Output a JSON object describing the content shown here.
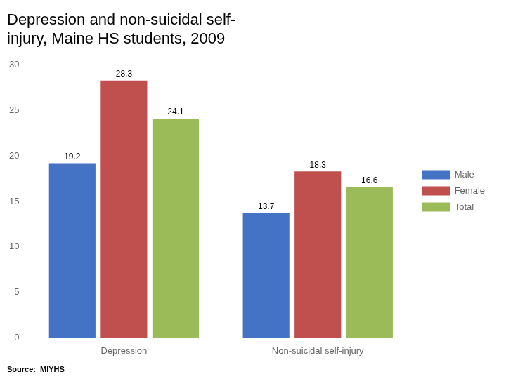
{
  "chart_data": {
    "type": "bar",
    "title": "Depression and non-suicidal self-\ninjury, Maine HS students, 2009",
    "categories": [
      "Depression",
      "Non-suicidal self-injury"
    ],
    "series": [
      {
        "name": "Male",
        "color": "#4472C4",
        "values": [
          19.2,
          13.7
        ]
      },
      {
        "name": "Female",
        "color": "#C0504D",
        "values": [
          28.3,
          18.3
        ]
      },
      {
        "name": "Total",
        "color": "#9BBB59",
        "values": [
          24.1,
          16.6
        ]
      }
    ],
    "ylim": [
      0,
      30
    ],
    "yticks": [
      0,
      5,
      10,
      15,
      20,
      25,
      30
    ],
    "grid": false,
    "legend": "right",
    "data_labels": true,
    "annotations": [
      "Source:  MIYHS"
    ]
  }
}
